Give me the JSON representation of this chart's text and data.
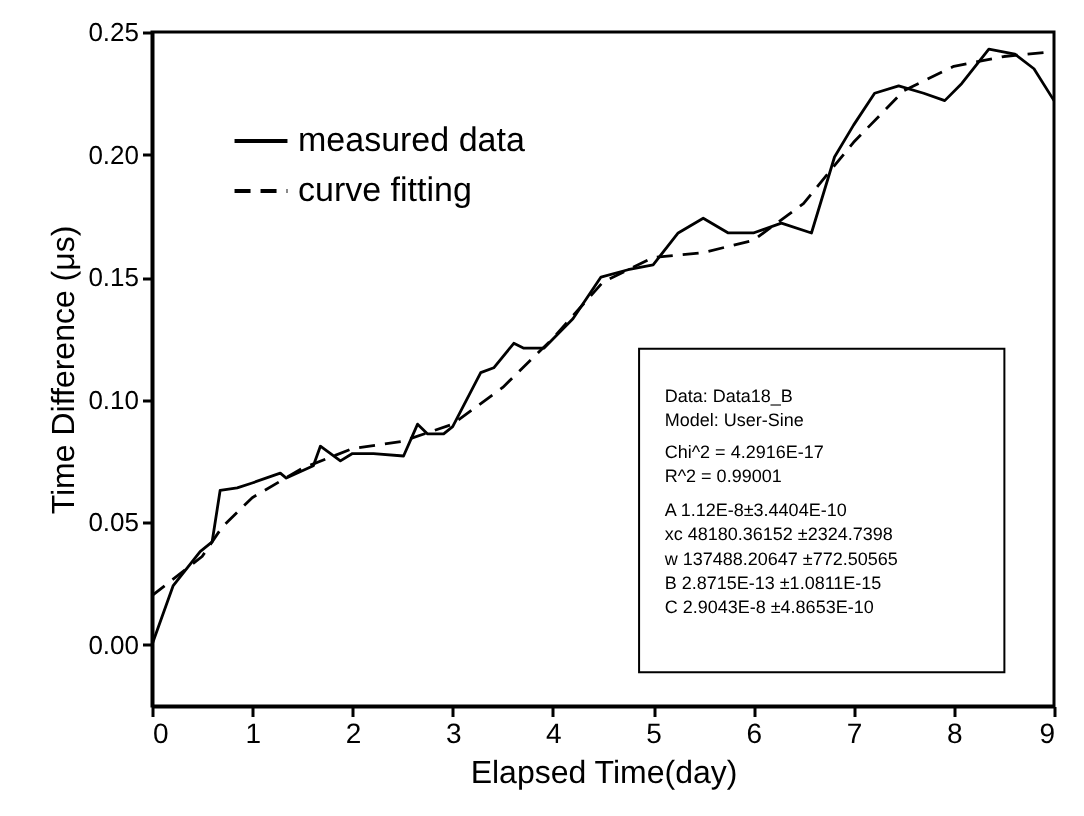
{
  "chart_data": {
    "type": "line",
    "xlabel": "Elapsed Time(day)",
    "ylabel": "Time Difference (μs)",
    "xlim": [
      0,
      9
    ],
    "xticks": [
      0,
      1,
      2,
      3,
      4,
      5,
      6,
      7,
      8,
      9
    ],
    "ylim": [
      -0.025,
      0.25
    ],
    "yticks": [
      {
        "value": 0,
        "label": "0.00"
      },
      0.05,
      {
        "value": 0.1,
        "label": "0.10"
      },
      0.15,
      {
        "value": 0.2,
        "label": "0.20"
      },
      0.25
    ],
    "grid": false,
    "legend": "top left",
    "marker": "none",
    "series": [
      {
        "name": "measured data",
        "color": "#000000",
        "line_style": "solid",
        "x": [
          0,
          0.21,
          0.48,
          0.6,
          0.68,
          0.85,
          1.0,
          1.28,
          1.34,
          1.61,
          1.68,
          1.88,
          2.0,
          2.21,
          2.51,
          2.65,
          2.75,
          2.91,
          3.0,
          3.28,
          3.41,
          3.61,
          3.71,
          3.91,
          4.2,
          4.48,
          4.75,
          5.0,
          5.25,
          5.5,
          5.75,
          6.0,
          6.28,
          6.58,
          6.81,
          7.0,
          7.21,
          7.45,
          7.7,
          7.91,
          8.08,
          8.35,
          8.61,
          8.8,
          9.0
        ],
        "values": [
          0,
          0.024,
          0.038,
          0.042,
          0.063,
          0.064,
          0.066,
          0.07,
          0.068,
          0.073,
          0.081,
          0.075,
          0.078,
          0.078,
          0.077,
          0.09,
          0.086,
          0.086,
          0.089,
          0.111,
          0.113,
          0.123,
          0.121,
          0.121,
          0.133,
          0.15,
          0.153,
          0.155,
          0.168,
          0.174,
          0.168,
          0.168,
          0.172,
          0.168,
          0.199,
          0.212,
          0.225,
          0.228,
          0.225,
          0.222,
          0.229,
          0.243,
          0.241,
          0.235,
          0.222
        ]
      },
      {
        "name": "curve fitting",
        "color": "#000000",
        "line_style": "dashed",
        "x": [
          0,
          0.5,
          0.7,
          1.0,
          1.5,
          2.0,
          2.5,
          3.0,
          3.5,
          4.0,
          4.5,
          5.0,
          5.5,
          6.0,
          6.5,
          7.0,
          7.5,
          8.0,
          8.5,
          9.0
        ],
        "values": [
          0.02,
          0.036,
          0.048,
          0.06,
          0.072,
          0.08,
          0.083,
          0.09,
          0.105,
          0.125,
          0.148,
          0.158,
          0.16,
          0.165,
          0.18,
          0.205,
          0.226,
          0.236,
          0.24,
          0.242
        ]
      }
    ],
    "annotations": [
      "Data: Data18_B",
      "Model: User-Sine",
      "Chi^2 = 4.2916E-17",
      "R^2 = 0.99001",
      "A 1.12E-8±3.4404E-10",
      "xc 48180.36152 ±2324.7398",
      "w 137488.20647 ±772.50565",
      "B 2.8715E-13 ±1.0811E-15",
      "C 2.9043E-8 ±4.8653E-10"
    ]
  }
}
